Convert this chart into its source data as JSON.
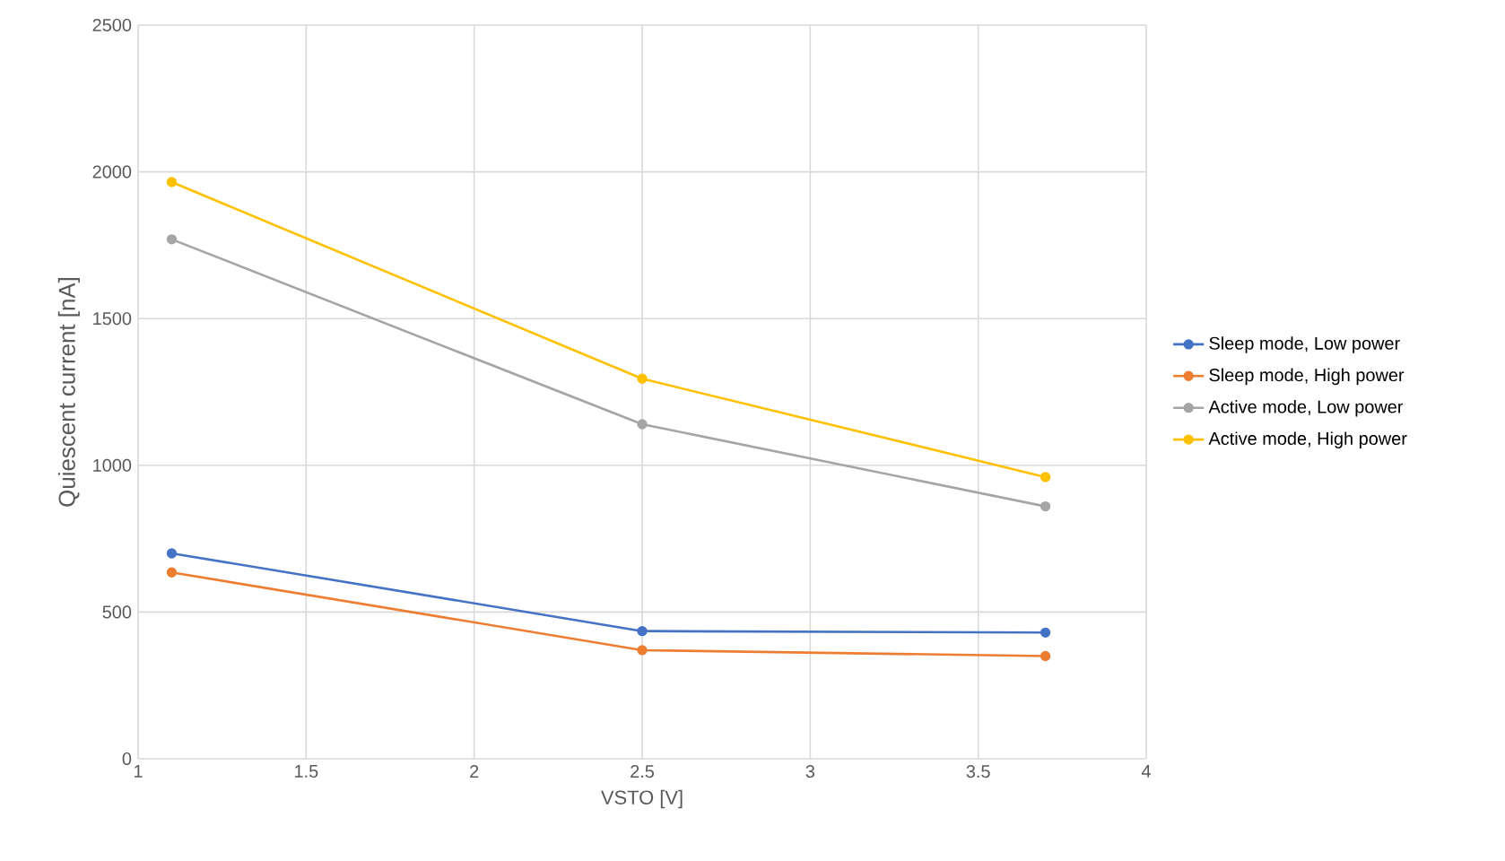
{
  "chart_data": {
    "type": "line",
    "xlabel": "VSTO [V]",
    "ylabel": "Quiescent current [nA]",
    "xlim": [
      1,
      4
    ],
    "xticks": [
      1,
      1.5,
      2,
      2.5,
      3,
      3.5,
      4
    ],
    "ylim": [
      0,
      2500
    ],
    "yticks": [
      0,
      500,
      1000,
      1500,
      2000,
      2500
    ],
    "grid": true,
    "legend": "right",
    "marker": "circle",
    "line_style": "solid",
    "x": [
      1.1,
      2.5,
      3.7
    ],
    "series": [
      {
        "name": "Sleep mode, Low power",
        "color": "#4472c4",
        "values": [
          700,
          435,
          430
        ]
      },
      {
        "name": "Sleep mode, High power",
        "color": "#ed7d31",
        "values": [
          635,
          370,
          350
        ]
      },
      {
        "name": "Active mode, Low power",
        "color": "#a5a5a5",
        "values": [
          1770,
          1140,
          860
        ]
      },
      {
        "name": "Active mode, High power",
        "color": "#ffc000",
        "values": [
          1965,
          1295,
          960
        ]
      }
    ]
  }
}
